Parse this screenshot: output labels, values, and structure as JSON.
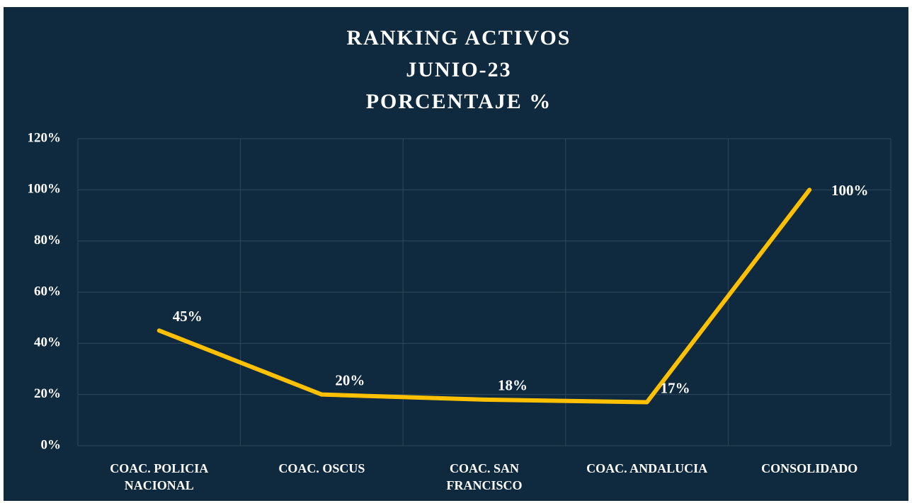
{
  "chart_data": {
    "type": "line",
    "title": [
      "RANKING ACTIVOS",
      "JUNIO-23",
      "PORCENTAJE %"
    ],
    "categories": [
      "COAC. POLICIA NACIONAL",
      "COAC. OSCUS",
      "COAC. SAN FRANCISCO",
      "COAC. ANDALUCIA",
      "CONSOLIDADO"
    ],
    "values": [
      45,
      20,
      18,
      17,
      100
    ],
    "value_labels": [
      "45%",
      "20%",
      "18%",
      "17%",
      "100%"
    ],
    "color": "#ffc000",
    "ylim": [
      0,
      120
    ],
    "yticks": [
      {
        "value": 0,
        "label": "0%"
      },
      {
        "value": 20,
        "label": "20%"
      },
      {
        "value": 40,
        "label": "40%"
      },
      {
        "value": 60,
        "label": "60%"
      },
      {
        "value": 80,
        "label": "80%"
      },
      {
        "value": 100,
        "label": "100%"
      },
      {
        "value": 120,
        "label": "120%"
      }
    ],
    "grid": true
  }
}
